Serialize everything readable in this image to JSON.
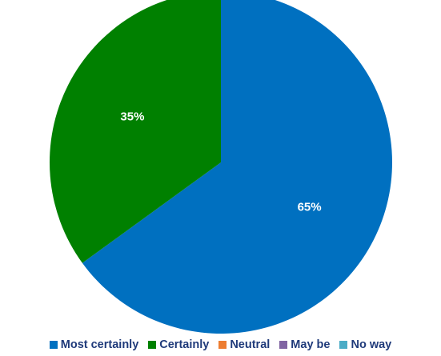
{
  "chart_data": {
    "type": "pie",
    "categories": [
      "Most certainly",
      "Certainly",
      "Neutral",
      "May be",
      "No way"
    ],
    "values": [
      65,
      35,
      0,
      0,
      0
    ],
    "data_labels": [
      "65%",
      "35%",
      "",
      "",
      ""
    ],
    "colors": [
      "#0070c0",
      "#008000",
      "#ed7d31",
      "#8064a2",
      "#4bacc6"
    ],
    "legend_position": "bottom",
    "label_color": "#ffffff",
    "legend_text_color": "#1f3a7a"
  }
}
